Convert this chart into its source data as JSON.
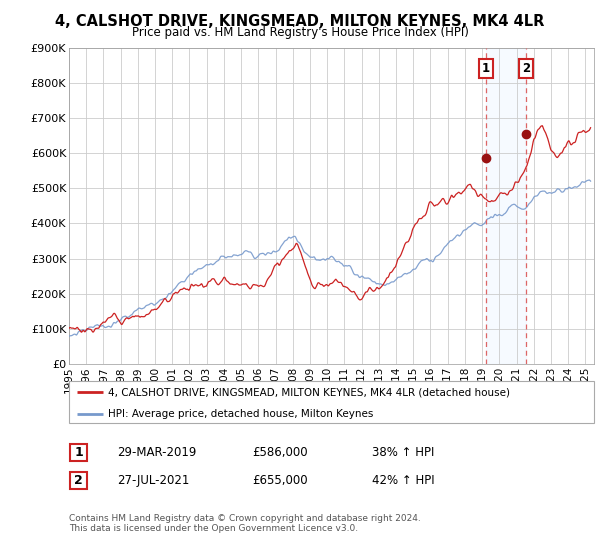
{
  "title": "4, CALSHOT DRIVE, KINGSMEAD, MILTON KEYNES, MK4 4LR",
  "subtitle": "Price paid vs. HM Land Registry's House Price Index (HPI)",
  "legend_label1": "4, CALSHOT DRIVE, KINGSMEAD, MILTON KEYNES, MK4 4LR (detached house)",
  "legend_label2": "HPI: Average price, detached house, Milton Keynes",
  "sale1_date": "29-MAR-2019",
  "sale1_price": "£586,000",
  "sale1_hpi": "38% ↑ HPI",
  "sale2_date": "27-JUL-2021",
  "sale2_price": "£655,000",
  "sale2_hpi": "42% ↑ HPI",
  "footer": "Contains HM Land Registry data © Crown copyright and database right 2024.\nThis data is licensed under the Open Government Licence v3.0.",
  "line1_color": "#cc2222",
  "line2_color": "#7799cc",
  "marker_color": "#991111",
  "shade_color": "#ddeeff",
  "vline_color": "#dd6666",
  "ylim": [
    0,
    900000
  ],
  "yticks": [
    0,
    100000,
    200000,
    300000,
    400000,
    500000,
    600000,
    700000,
    800000,
    900000
  ],
  "ytick_labels": [
    "£0",
    "£100K",
    "£200K",
    "£300K",
    "£400K",
    "£500K",
    "£600K",
    "£700K",
    "£800K",
    "£900K"
  ],
  "sale1_x": 2019.23,
  "sale1_y": 586000,
  "sale2_x": 2021.56,
  "sale2_y": 655000,
  "shade_x1": 2019.23,
  "shade_x2": 2021.56,
  "xlim_left": 1995.0,
  "xlim_right": 2025.5
}
